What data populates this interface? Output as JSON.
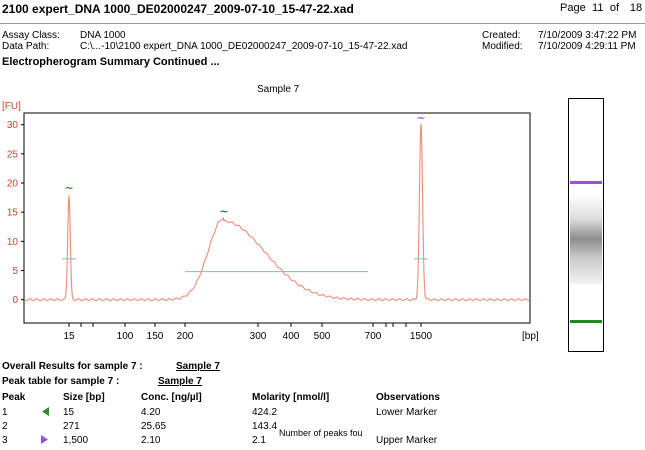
{
  "header": {
    "title": "2100 expert_DNA 1000_DE02000247_2009-07-10_15-47-22.xad",
    "page_word": "Page",
    "page_current": "11",
    "page_of": "of",
    "page_total": "18"
  },
  "meta": {
    "assay_class_label": "Assay Class:",
    "assay_class_value": "DNA 1000",
    "data_path_label": "Data Path:",
    "data_path_value": "C:\\...-10\\2100 expert_DNA 1000_DE02000247_2009-07-10_15-47-22.xad",
    "created_label": "Created:",
    "created_value": "7/10/2009 3:47:22 PM",
    "modified_label": "Modified:",
    "modified_value": "7/10/2009 4:29:11 PM"
  },
  "section_title": "Electropherogram Summary Continued ...",
  "sample_label": "Sample 7",
  "chart_data": {
    "type": "line",
    "title": "",
    "ylabel": "[FU]",
    "xlabel": "[bp]",
    "ylim": [
      -4,
      32
    ],
    "y_ticks": [
      "0",
      "5",
      "10",
      "15",
      "20",
      "25",
      "30"
    ],
    "x_ticks": [
      "15",
      "100",
      "150",
      "200",
      "300",
      "400",
      "500",
      "700",
      "1500"
    ],
    "series_color": "#f08a7a",
    "baseline_color": "#7fbfb5",
    "markers": [
      {
        "label": "15",
        "peak_fu": 18,
        "color": "#2e8b2e",
        "symbol": "~"
      },
      {
        "label": "271",
        "peak_fu": 14,
        "color": "#2a6a4a",
        "symbol": "~"
      },
      {
        "label": "1500",
        "peak_fu": 30,
        "color": "#9b4fd9",
        "symbol": "~"
      }
    ]
  },
  "results": {
    "overall_label": "Overall Results for sample 7  :",
    "overall_value": "Sample 7",
    "peak_table_label": "Peak table for sample 7  :",
    "peak_table_value": "Sample 7"
  },
  "peak_table": {
    "headers": [
      "Peak",
      "Size [bp]",
      "Conc. [ng/µl]",
      "Molarity [nmol/l]",
      "Observations"
    ],
    "rows": [
      {
        "peak": "1",
        "size": "15",
        "conc": "4.20",
        "molarity": "424.2",
        "obs": "Lower Marker",
        "marker_color": "#2e8b2e",
        "marker": "left"
      },
      {
        "peak": "2",
        "size": "271",
        "conc": "25.65",
        "molarity": "143.4",
        "obs": "",
        "marker_color": "",
        "marker": ""
      },
      {
        "peak": "3",
        "size": "1,500",
        "conc": "2.10",
        "molarity": "2.1",
        "obs": "Upper Marker",
        "marker_color": "#9b4fd9",
        "marker": "right"
      }
    ],
    "note": "Number of peaks fou"
  },
  "gel": {
    "upper_band_color": "#a24fe0",
    "lower_band_color": "#1e8a1e"
  }
}
